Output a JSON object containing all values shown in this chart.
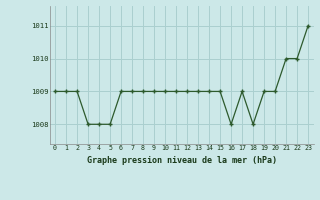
{
  "x": [
    0,
    1,
    2,
    3,
    4,
    5,
    6,
    7,
    8,
    9,
    10,
    11,
    12,
    13,
    14,
    15,
    16,
    17,
    18,
    19,
    20,
    21,
    22,
    23
  ],
  "y": [
    1009,
    1009,
    1009,
    1008,
    1008,
    1008,
    1009,
    1009,
    1009,
    1009,
    1009,
    1009,
    1009,
    1009,
    1009,
    1009,
    1008,
    1009,
    1008,
    1009,
    1009,
    1010,
    1010,
    1011
  ],
  "line_color": "#2d5a2d",
  "marker_color": "#2d5a2d",
  "bg_color": "#cce8e8",
  "grid_color": "#aacfcf",
  "title": "Graphe pression niveau de la mer (hPa)",
  "ylabel_ticks": [
    1008,
    1009,
    1010,
    1011
  ],
  "xlim": [
    -0.5,
    23.5
  ],
  "ylim": [
    1007.4,
    1011.6
  ]
}
